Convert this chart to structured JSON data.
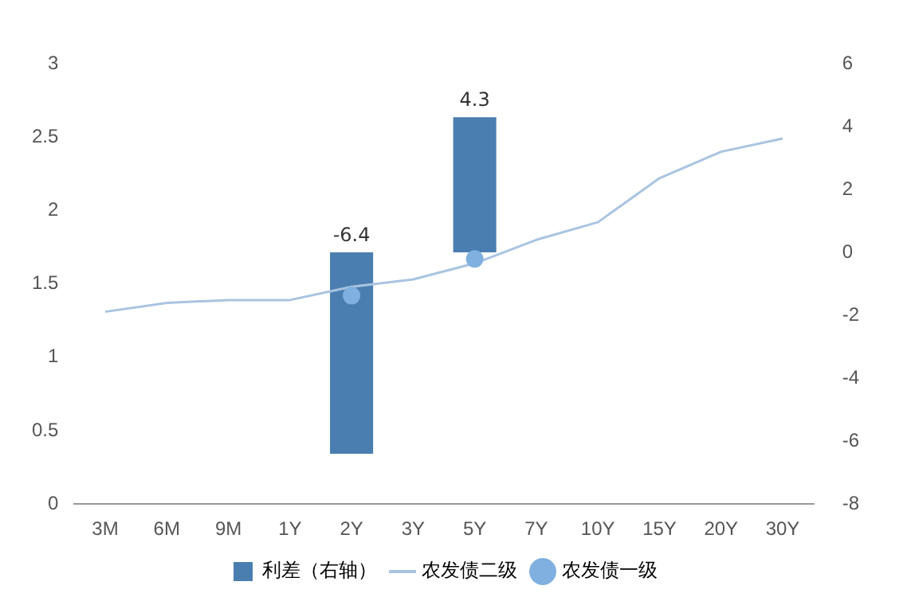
{
  "chart_data": {
    "type": "line",
    "categories": [
      "3M",
      "6M",
      "9M",
      "1Y",
      "2Y",
      "3Y",
      "5Y",
      "7Y",
      "10Y",
      "15Y",
      "20Y",
      "30Y"
    ],
    "series": [
      {
        "name": "利差（右轴）",
        "type": "bar",
        "axis": "y2",
        "color": "#4a7eb0",
        "values": [
          null,
          null,
          null,
          null,
          -6.4,
          null,
          4.3,
          null,
          null,
          null,
          null,
          null
        ],
        "value_labels": [
          null,
          null,
          null,
          null,
          "-6.4",
          null,
          "4.3",
          null,
          null,
          null,
          null,
          null
        ]
      },
      {
        "name": "农发债二级",
        "color": "#a9c4e0",
        "values": [
          1.31,
          1.37,
          1.39,
          1.39,
          1.48,
          1.53,
          1.64,
          1.8,
          1.92,
          2.22,
          2.4,
          2.49
        ]
      },
      {
        "name": "农发债一级",
        "type": "scatter",
        "color": "#7fb0e0",
        "x": [
          "2Y",
          "5Y"
        ],
        "values": [
          1.42,
          1.67
        ]
      }
    ],
    "ylim": [
      0,
      3
    ],
    "yticks": [
      0,
      0.5,
      1,
      1.5,
      2,
      2.5,
      3
    ],
    "y2lim": [
      -8,
      6
    ],
    "y2ticks": [
      -8,
      -6,
      -4,
      -2,
      0,
      2,
      4,
      6
    ],
    "grid": false,
    "legend": "bottom"
  }
}
